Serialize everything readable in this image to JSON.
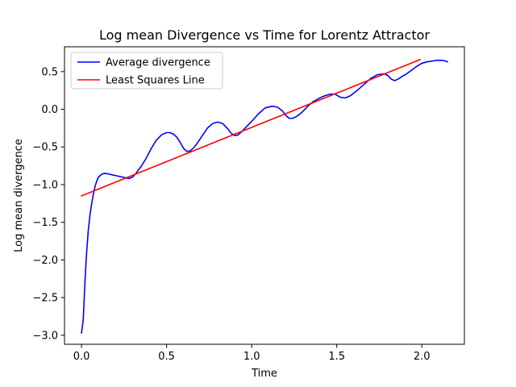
{
  "chart_data": {
    "type": "line",
    "title": "Log mean Divergence vs Time for Lorentz Attractor",
    "xlabel": "Time",
    "ylabel": "Log mean divergence",
    "xlim": [
      -0.1,
      2.25
    ],
    "ylim": [
      -3.12,
      0.83
    ],
    "xticks": [
      0.0,
      0.5,
      1.0,
      1.5,
      2.0
    ],
    "xtick_labels": [
      "0.0",
      "0.5",
      "1.0",
      "1.5",
      "2.0"
    ],
    "yticks": [
      -3.0,
      -2.5,
      -2.0,
      -1.5,
      -1.0,
      -0.5,
      0.0,
      0.5
    ],
    "ytick_labels": [
      "−3.0",
      "−2.5",
      "−2.0",
      "−1.5",
      "−1.0",
      "−0.5",
      "0.0",
      "0.5"
    ],
    "grid": false,
    "legend_position": "top-left",
    "series": [
      {
        "name": "Average divergence",
        "color": "#0000ff",
        "x": [
          0.0,
          0.01,
          0.02,
          0.03,
          0.04,
          0.05,
          0.06,
          0.07,
          0.08,
          0.09,
          0.1,
          0.12,
          0.14,
          0.16,
          0.18,
          0.2,
          0.22,
          0.24,
          0.26,
          0.28,
          0.3,
          0.32,
          0.35,
          0.38,
          0.41,
          0.44,
          0.47,
          0.5,
          0.52,
          0.54,
          0.56,
          0.58,
          0.6,
          0.62,
          0.64,
          0.66,
          0.68,
          0.71,
          0.74,
          0.77,
          0.8,
          0.83,
          0.86,
          0.88,
          0.9,
          0.92,
          0.94,
          0.97,
          1.0,
          1.04,
          1.08,
          1.12,
          1.15,
          1.18,
          1.2,
          1.22,
          1.24,
          1.26,
          1.28,
          1.3,
          1.33,
          1.36,
          1.4,
          1.43,
          1.46,
          1.49,
          1.52,
          1.55,
          1.58,
          1.62,
          1.66,
          1.7,
          1.74,
          1.78,
          1.8,
          1.82,
          1.84,
          1.86,
          1.88,
          1.91,
          1.94,
          1.97,
          2.0,
          2.03,
          2.06,
          2.09,
          2.12,
          2.14,
          2.15
        ],
        "y": [
          -2.97,
          -2.8,
          -2.3,
          -1.9,
          -1.6,
          -1.4,
          -1.25,
          -1.12,
          -1.02,
          -0.95,
          -0.9,
          -0.86,
          -0.85,
          -0.86,
          -0.87,
          -0.88,
          -0.89,
          -0.9,
          -0.91,
          -0.92,
          -0.9,
          -0.85,
          -0.76,
          -0.65,
          -0.52,
          -0.41,
          -0.34,
          -0.31,
          -0.31,
          -0.33,
          -0.37,
          -0.44,
          -0.52,
          -0.56,
          -0.55,
          -0.51,
          -0.45,
          -0.35,
          -0.25,
          -0.19,
          -0.17,
          -0.19,
          -0.26,
          -0.32,
          -0.35,
          -0.34,
          -0.3,
          -0.23,
          -0.16,
          -0.06,
          0.02,
          0.04,
          0.03,
          -0.02,
          -0.08,
          -0.12,
          -0.12,
          -0.1,
          -0.07,
          -0.03,
          0.04,
          0.1,
          0.15,
          0.18,
          0.2,
          0.2,
          0.16,
          0.15,
          0.18,
          0.25,
          0.33,
          0.41,
          0.46,
          0.47,
          0.45,
          0.4,
          0.38,
          0.4,
          0.43,
          0.47,
          0.52,
          0.57,
          0.61,
          0.63,
          0.64,
          0.65,
          0.65,
          0.64,
          0.63
        ]
      },
      {
        "name": "Least Squares Line",
        "color": "#ff0000",
        "x": [
          0.0,
          1.99
        ],
        "y": [
          -1.15,
          0.66
        ]
      }
    ]
  }
}
